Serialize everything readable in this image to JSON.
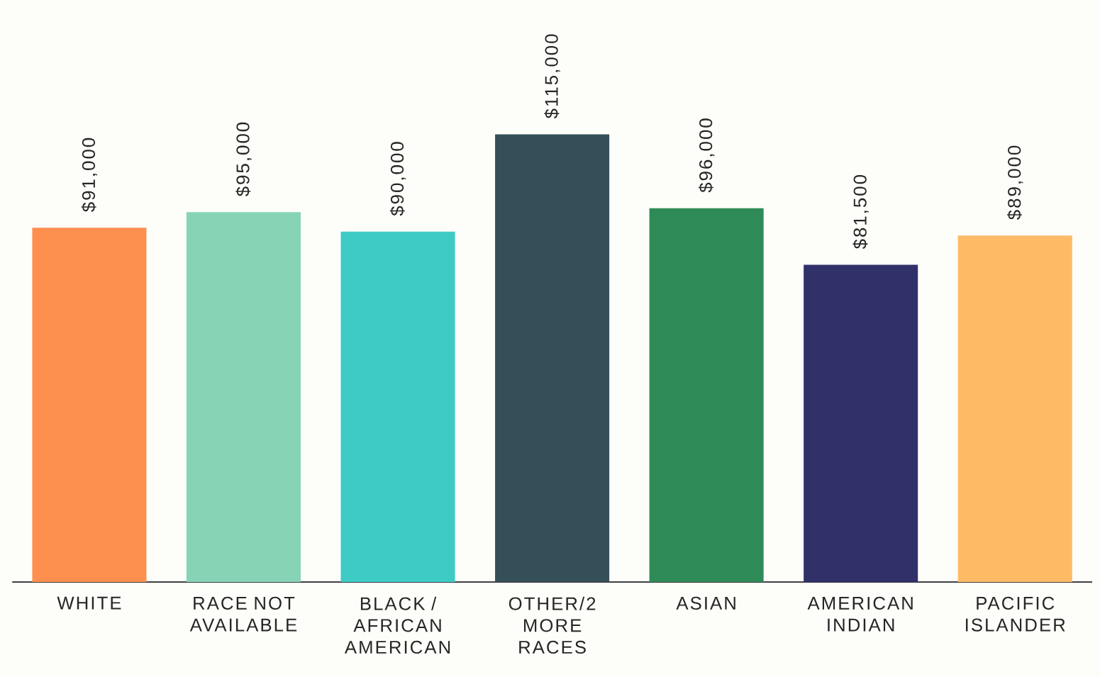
{
  "chart_data": {
    "type": "bar",
    "categories": [
      "WHITE",
      "RACE NOT AVAILABLE",
      "BLACK / AFRICAN AMERICAN",
      "OTHER/2 MORE RACES",
      "ASIAN",
      "AMERICAN INDIAN",
      "PACIFIC ISLANDER"
    ],
    "values": [
      91000,
      95000,
      90000,
      115000,
      96000,
      81500,
      89000
    ],
    "colors": [
      "#fd8f4f",
      "#86d4b5",
      "#3ecbc6",
      "#354f59",
      "#2e8b57",
      "#31316a",
      "#fdbb66"
    ],
    "value_labels": [
      "$91,000",
      "$95,000",
      "$90,000",
      "$115,000",
      "$96,000",
      "$81,500",
      "$89,000"
    ]
  }
}
